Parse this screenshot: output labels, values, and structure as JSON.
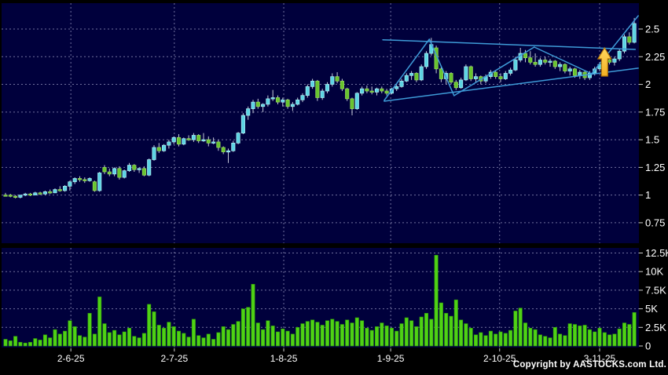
{
  "meta": {
    "copyright": "Copyright by AASTOCKS.com Ltd."
  },
  "colors": {
    "background": "#000000",
    "pane": "#00003c",
    "grid": "#9696be",
    "up_candle": "#5cd4e4",
    "up_candle_edge": "#aef0f6",
    "down_candle": "#68c42e",
    "down_candle_edge": "#9ade5c",
    "wick": "#c4c8d8",
    "volume_bar": "#4fd215",
    "volume_bar_edge": "#2d9a08",
    "trendline": "#3e9bd8",
    "arrow_fill": "#f2b024",
    "arrow_fill_light": "#ffd75e",
    "arrow_edge": "#b07308",
    "axis_text": "#ffffff"
  },
  "chart_data": {
    "type": "candlestick+volume",
    "title": "",
    "x_axis": {
      "labels": [
        "2-6-25",
        "2-7-25",
        "1-8-25",
        "1-9-25",
        "2-10-25",
        "3-11-25"
      ],
      "tick_indices": [
        13.2,
        34.1,
        56.2,
        77.8,
        99.8,
        120.0
      ]
    },
    "price_axis": {
      "side": "right",
      "tick_labels": [
        "2.5",
        "2.25",
        "2",
        "1.75",
        "1.5",
        "1.25",
        "1",
        "0.75"
      ],
      "tick_values": [
        2.5,
        2.25,
        2.0,
        1.75,
        1.5,
        1.25,
        1.0,
        0.75
      ],
      "grid": "dashed"
    },
    "volume_axis": {
      "side": "right",
      "tick_labels": [
        "12.5K",
        "10K",
        "7.5K",
        "5K",
        "2.5K",
        "0"
      ],
      "tick_values_k": [
        12.5,
        10,
        7.5,
        5,
        2.5,
        0
      ],
      "grid": "dashed"
    },
    "candles_ohlc": [
      [
        1.0,
        1.02,
        0.99,
        1.0
      ],
      [
        1.0,
        1.01,
        0.98,
        0.99
      ],
      [
        0.99,
        1.0,
        0.97,
        0.98
      ],
      [
        0.98,
        1.0,
        0.97,
        1.0
      ],
      [
        1.0,
        1.02,
        0.99,
        1.01
      ],
      [
        1.01,
        1.02,
        0.99,
        1.0
      ],
      [
        1.0,
        1.03,
        1.0,
        1.02
      ],
      [
        1.02,
        1.03,
        1.0,
        1.01
      ],
      [
        1.01,
        1.04,
        1.0,
        1.03
      ],
      [
        1.03,
        1.05,
        1.01,
        1.02
      ],
      [
        1.02,
        1.06,
        1.02,
        1.05
      ],
      [
        1.05,
        1.08,
        1.03,
        1.04
      ],
      [
        1.04,
        1.09,
        1.03,
        1.08
      ],
      [
        1.08,
        1.13,
        1.04,
        1.12
      ],
      [
        1.12,
        1.16,
        1.1,
        1.15
      ],
      [
        1.15,
        1.17,
        1.12,
        1.14
      ],
      [
        1.14,
        1.16,
        1.11,
        1.13
      ],
      [
        1.13,
        1.16,
        1.12,
        1.15
      ],
      [
        1.12,
        1.13,
        1.03,
        1.04
      ],
      [
        1.04,
        1.21,
        1.03,
        1.2
      ],
      [
        1.25,
        1.27,
        1.19,
        1.21
      ],
      [
        1.21,
        1.24,
        1.17,
        1.19
      ],
      [
        1.19,
        1.25,
        1.17,
        1.24
      ],
      [
        1.24,
        1.26,
        1.14,
        1.16
      ],
      [
        1.16,
        1.23,
        1.15,
        1.22
      ],
      [
        1.22,
        1.29,
        1.21,
        1.27
      ],
      [
        1.27,
        1.28,
        1.21,
        1.23
      ],
      [
        1.23,
        1.25,
        1.2,
        1.24
      ],
      [
        1.24,
        1.26,
        1.17,
        1.18
      ],
      [
        1.18,
        1.33,
        1.17,
        1.32
      ],
      [
        1.32,
        1.45,
        1.31,
        1.43
      ],
      [
        1.43,
        1.47,
        1.38,
        1.4
      ],
      [
        1.4,
        1.46,
        1.39,
        1.45
      ],
      [
        1.45,
        1.5,
        1.42,
        1.48
      ],
      [
        1.48,
        1.53,
        1.46,
        1.52
      ],
      [
        1.52,
        1.55,
        1.44,
        1.46
      ],
      [
        1.46,
        1.52,
        1.45,
        1.51
      ],
      [
        1.51,
        1.54,
        1.49,
        1.5
      ],
      [
        1.5,
        1.56,
        1.48,
        1.54
      ],
      [
        1.54,
        1.55,
        1.47,
        1.49
      ],
      [
        1.49,
        1.56,
        1.48,
        1.5
      ],
      [
        1.5,
        1.53,
        1.44,
        1.47
      ],
      [
        1.47,
        1.52,
        1.46,
        1.48
      ],
      [
        1.48,
        1.5,
        1.4,
        1.43
      ],
      [
        1.43,
        1.44,
        1.37,
        1.39
      ],
      [
        1.39,
        1.42,
        1.29,
        1.4
      ],
      [
        1.4,
        1.49,
        1.39,
        1.47
      ],
      [
        1.47,
        1.57,
        1.46,
        1.56
      ],
      [
        1.56,
        1.74,
        1.55,
        1.72
      ],
      [
        1.72,
        1.8,
        1.68,
        1.78
      ],
      [
        1.78,
        1.86,
        1.74,
        1.84
      ],
      [
        1.84,
        1.87,
        1.78,
        1.8
      ],
      [
        1.8,
        1.83,
        1.75,
        1.82
      ],
      [
        1.82,
        1.9,
        1.8,
        1.87
      ],
      [
        1.87,
        1.95,
        1.85,
        1.88
      ],
      [
        1.88,
        1.9,
        1.82,
        1.84
      ],
      [
        1.84,
        1.88,
        1.8,
        1.86
      ],
      [
        1.86,
        1.87,
        1.78,
        1.8
      ],
      [
        1.8,
        1.84,
        1.76,
        1.82
      ],
      [
        1.82,
        1.88,
        1.81,
        1.86
      ],
      [
        1.86,
        1.92,
        1.84,
        1.9
      ],
      [
        1.9,
        2.0,
        1.88,
        1.98
      ],
      [
        1.98,
        2.05,
        1.96,
        2.03
      ],
      [
        2.03,
        2.04,
        1.85,
        1.88
      ],
      [
        1.88,
        1.96,
        1.86,
        1.94
      ],
      [
        1.94,
        2.02,
        1.92,
        2.0
      ],
      [
        2.0,
        2.1,
        1.98,
        2.07
      ],
      [
        2.07,
        2.11,
        2.01,
        2.03
      ],
      [
        2.03,
        2.05,
        1.94,
        1.96
      ],
      [
        1.96,
        1.97,
        1.85,
        1.87
      ],
      [
        1.87,
        1.88,
        1.72,
        1.78
      ],
      [
        1.78,
        1.93,
        1.77,
        1.92
      ],
      [
        1.92,
        1.98,
        1.9,
        1.96
      ],
      [
        1.96,
        1.99,
        1.92,
        1.94
      ],
      [
        1.94,
        1.98,
        1.91,
        1.93
      ],
      [
        1.93,
        1.97,
        1.9,
        1.96
      ],
      [
        1.96,
        1.98,
        1.92,
        1.94
      ],
      [
        1.94,
        1.96,
        1.9,
        1.92
      ],
      [
        1.92,
        1.97,
        1.91,
        1.96
      ],
      [
        1.96,
        2.0,
        1.94,
        1.98
      ],
      [
        1.98,
        2.05,
        1.97,
        2.03
      ],
      [
        2.03,
        2.1,
        2.02,
        2.08
      ],
      [
        2.08,
        2.12,
        2.04,
        2.1
      ],
      [
        2.1,
        2.11,
        2.02,
        2.04
      ],
      [
        2.04,
        2.18,
        2.03,
        2.16
      ],
      [
        2.16,
        2.3,
        2.14,
        2.28
      ],
      [
        2.28,
        2.42,
        2.26,
        2.36
      ],
      [
        2.33,
        2.35,
        2.1,
        2.14
      ],
      [
        2.14,
        2.16,
        2.02,
        2.05
      ],
      [
        2.05,
        2.12,
        2.0,
        2.1
      ],
      [
        2.1,
        2.11,
        2.0,
        2.02
      ],
      [
        2.02,
        2.04,
        1.95,
        1.97
      ],
      [
        1.97,
        2.06,
        1.96,
        2.04
      ],
      [
        2.04,
        2.18,
        2.03,
        2.16
      ],
      [
        2.16,
        2.17,
        2.03,
        2.05
      ],
      [
        2.05,
        2.1,
        2.02,
        2.07
      ],
      [
        2.07,
        2.08,
        2.0,
        2.03
      ],
      [
        2.03,
        2.09,
        2.01,
        2.07
      ],
      [
        2.07,
        2.13,
        2.05,
        2.11
      ],
      [
        2.11,
        2.12,
        2.05,
        2.07
      ],
      [
        2.07,
        2.1,
        2.02,
        2.05
      ],
      [
        2.05,
        2.12,
        2.04,
        2.1
      ],
      [
        2.1,
        2.15,
        2.08,
        2.13
      ],
      [
        2.13,
        2.25,
        2.12,
        2.22
      ],
      [
        2.22,
        2.33,
        2.2,
        2.28
      ],
      [
        2.28,
        2.31,
        2.2,
        2.24
      ],
      [
        2.24,
        2.3,
        2.18,
        2.2
      ],
      [
        2.2,
        2.28,
        2.16,
        2.18
      ],
      [
        2.18,
        2.24,
        2.16,
        2.22
      ],
      [
        2.22,
        2.25,
        2.18,
        2.2
      ],
      [
        2.2,
        2.23,
        2.16,
        2.21
      ],
      [
        2.21,
        2.22,
        2.14,
        2.16
      ],
      [
        2.16,
        2.2,
        2.12,
        2.18
      ],
      [
        2.18,
        2.19,
        2.1,
        2.12
      ],
      [
        2.12,
        2.16,
        2.08,
        2.14
      ],
      [
        2.14,
        2.15,
        2.06,
        2.08
      ],
      [
        2.08,
        2.13,
        2.05,
        2.11
      ],
      [
        2.11,
        2.12,
        2.04,
        2.06
      ],
      [
        2.06,
        2.12,
        2.04,
        2.1
      ],
      [
        2.1,
        2.16,
        2.08,
        2.14
      ],
      [
        2.14,
        2.2,
        2.12,
        2.18
      ],
      [
        2.18,
        2.24,
        2.16,
        2.22
      ],
      [
        2.22,
        2.26,
        2.18,
        2.2
      ],
      [
        2.2,
        2.25,
        2.17,
        2.23
      ],
      [
        2.23,
        2.32,
        2.21,
        2.3
      ],
      [
        2.3,
        2.45,
        2.28,
        2.43
      ],
      [
        2.43,
        2.47,
        2.36,
        2.38
      ],
      [
        2.38,
        2.6,
        2.37,
        2.55
      ]
    ],
    "volumes_k": [
      0.9,
      0.7,
      1.3,
      0.5,
      0.4,
      0.5,
      1.0,
      0.8,
      1.5,
      1.1,
      2.2,
      1.6,
      2.0,
      3.4,
      2.6,
      1.4,
      1.2,
      4.4,
      1.6,
      6.6,
      3.0,
      1.8,
      2.1,
      1.5,
      1.9,
      2.4,
      1.3,
      1.1,
      1.7,
      5.6,
      4.6,
      2.8,
      2.4,
      3.2,
      2.6,
      2.0,
      1.7,
      1.2,
      3.6,
      1.4,
      1.1,
      1.6,
      0.9,
      1.8,
      2.6,
      2.2,
      2.9,
      3.3,
      5.0,
      5.2,
      8.3,
      3.1,
      2.2,
      3.4,
      2.7,
      1.9,
      2.3,
      2.0,
      1.6,
      2.5,
      3.0,
      3.3,
      3.5,
      3.2,
      2.8,
      3.4,
      3.6,
      3.3,
      2.9,
      3.5,
      3.1,
      3.8,
      3.4,
      2.4,
      2.1,
      2.6,
      3.1,
      2.7,
      2.4,
      2.0,
      3.0,
      3.8,
      3.4,
      2.6,
      3.9,
      4.4,
      3.6,
      12.2,
      5.8,
      4.4,
      4.0,
      6.2,
      3.5,
      3.0,
      2.4,
      1.5,
      1.8,
      1.4,
      2.0,
      1.6,
      1.9,
      1.7,
      2.1,
      4.7,
      5.1,
      3.1,
      2.4,
      2.2,
      1.5,
      1.3,
      1.1,
      2.5,
      1.6,
      1.4,
      3.0,
      2.9,
      2.7,
      2.8,
      2.2,
      1.9,
      2.4,
      1.8,
      1.5,
      1.6,
      2.3,
      3.1,
      2.9,
      4.5
    ],
    "trendlines": [
      {
        "name": "upper-resistance",
        "i1": 76.2,
        "p1": 2.403,
        "i2": 127.2,
        "p2": 2.316
      },
      {
        "name": "zigzag-rise-1",
        "i1": 76.5,
        "p1": 1.855,
        "i2": 85.6,
        "p2": 2.408
      },
      {
        "name": "zigzag-fall-1",
        "i1": 85.6,
        "p1": 2.408,
        "i2": 90.6,
        "p2": 1.898
      },
      {
        "name": "zigzag-rise-2",
        "i1": 90.6,
        "p1": 1.898,
        "i2": 106.8,
        "p2": 2.337
      },
      {
        "name": "zigzag-fall-2",
        "i1": 106.8,
        "p1": 2.337,
        "i2": 118.4,
        "p2": 2.096
      },
      {
        "name": "breakout-line",
        "i1": 118.4,
        "p1": 2.096,
        "i2": 127.8,
        "p2": 2.62
      },
      {
        "name": "lower-support",
        "i1": 76.5,
        "p1": 1.848,
        "i2": 127.8,
        "p2": 2.146
      }
    ],
    "signal_arrow": {
      "name": "up-arrow-signal",
      "index": 121,
      "tip_price": 2.33,
      "base_price": 2.075
    }
  }
}
